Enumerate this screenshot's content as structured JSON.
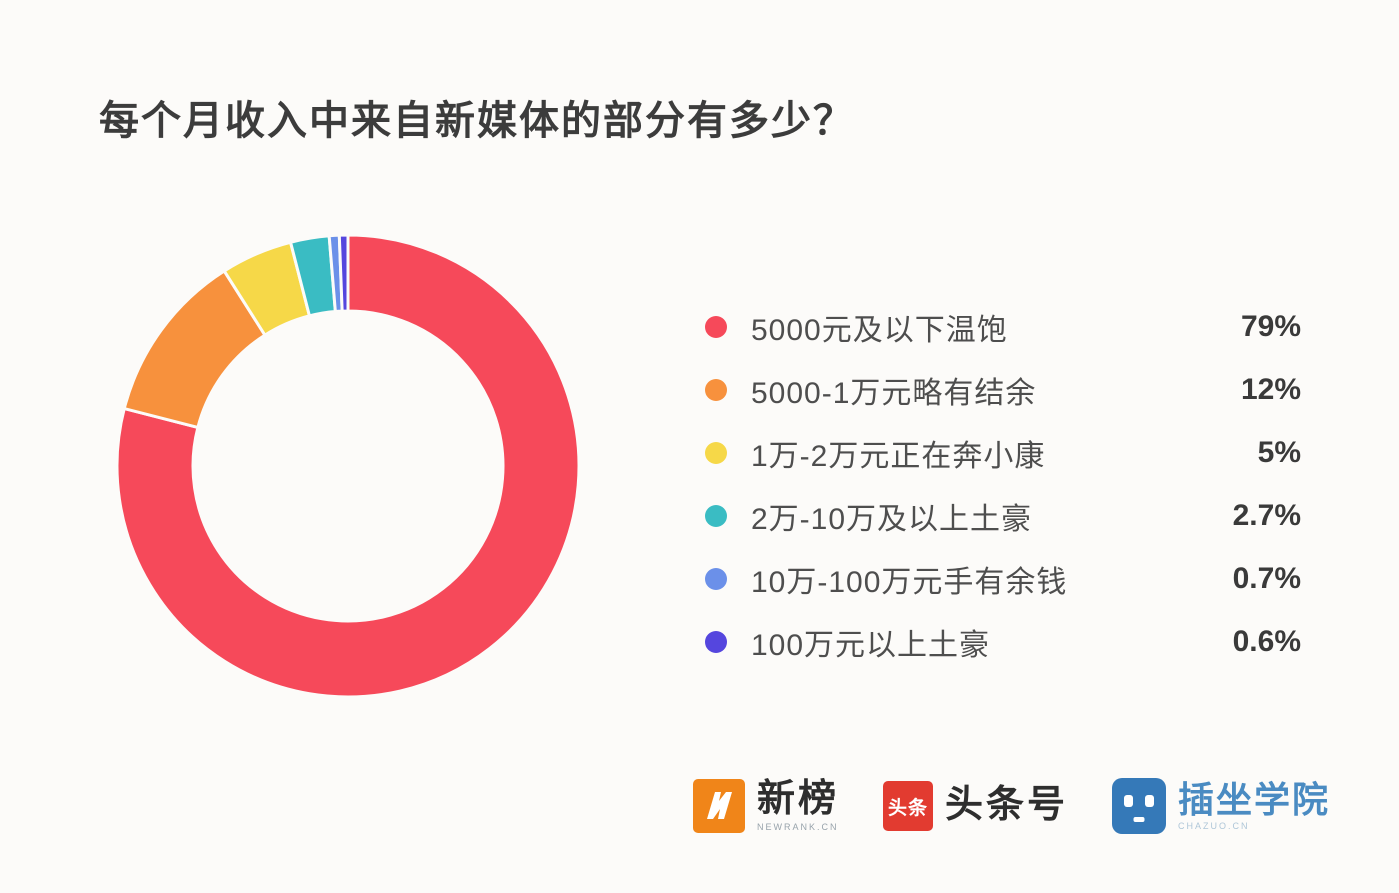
{
  "title": "每个月收入中来自新媒体的部分有多少？",
  "chart_data": {
    "type": "pie",
    "subtype": "donut",
    "title": "每个月收入中来自新媒体的部分有多少？",
    "legend_position": "right",
    "start_angle_deg": 0,
    "direction": "clockwise",
    "inner_radius_ratio": 0.67,
    "series": [
      {
        "label": "5000元及以下温饱",
        "value": 79,
        "display": "79%",
        "color": "#F6495A"
      },
      {
        "label": "5000-1万元略有结余",
        "value": 12,
        "display": "12%",
        "color": "#F7913D"
      },
      {
        "label": "1万-2万元正在奔小康",
        "value": 5,
        "display": "5%",
        "color": "#F6D848"
      },
      {
        "label": "2万-10万及以上土豪",
        "value": 2.7,
        "display": "2.7%",
        "color": "#3ABCC3"
      },
      {
        "label": "10万-100万元手有余钱",
        "value": 0.7,
        "display": "0.7%",
        "color": "#6B90E9"
      },
      {
        "label": "100万元以上土豪",
        "value": 0.6,
        "display": "0.6%",
        "color": "#5546DE"
      }
    ]
  },
  "footer": {
    "logos": [
      {
        "name": "新榜",
        "subtext": "NEWRANK.CN",
        "badge_letter": "N",
        "brand_color": "#F08519"
      },
      {
        "name": "头条号",
        "badge_text": "头条",
        "brand_color": "#E23B30"
      },
      {
        "name": "插坐学院",
        "subtext": "CHAZUO.CN",
        "brand_color": "#3579B8"
      }
    ]
  }
}
